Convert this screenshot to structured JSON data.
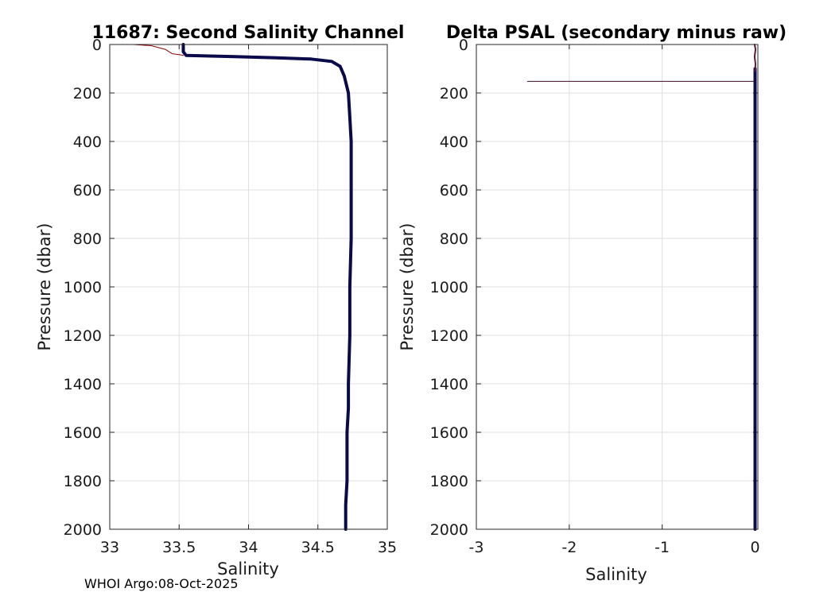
{
  "footer_text": "WHOI Argo:08-Oct-2025",
  "chart_data": [
    {
      "type": "line",
      "title": "11687: Second Salinity Channel",
      "xlabel": "Salinity",
      "ylabel": "Pressure (dbar)",
      "xlim": [
        33,
        35
      ],
      "ylim": [
        0,
        2000
      ],
      "y_reversed": true,
      "grid": true,
      "xticks": [
        33,
        33.5,
        34,
        34.5,
        35
      ],
      "xtick_labels": [
        "33",
        "33.5",
        "34",
        "34.5",
        "35"
      ],
      "yticks": [
        0,
        200,
        400,
        600,
        800,
        1000,
        1200,
        1400,
        1600,
        1800,
        2000
      ],
      "ytick_labels": [
        "0",
        "200",
        "400",
        "600",
        "800",
        "1000",
        "1200",
        "1400",
        "1600",
        "1800",
        "2000"
      ],
      "series": [
        {
          "color": "#0a0a4a",
          "x": [
            33.53,
            33.53,
            33.55,
            33.9,
            34.2,
            34.45,
            34.6,
            34.66,
            34.69,
            34.72,
            34.73,
            34.74,
            34.74,
            34.74,
            34.73,
            34.73,
            34.72,
            34.72,
            34.71,
            34.71,
            34.7,
            34.7
          ],
          "y": [
            0,
            30,
            45,
            50,
            55,
            60,
            70,
            90,
            130,
            200,
            300,
            400,
            600,
            800,
            1000,
            1200,
            1400,
            1500,
            1600,
            1800,
            1900,
            2000
          ]
        },
        {
          "color": "#8b0000",
          "x": [
            33.17,
            33.3,
            33.4,
            33.45,
            33.5,
            33.53
          ],
          "y": [
            0,
            5,
            20,
            38,
            42,
            45
          ]
        }
      ]
    },
    {
      "type": "line",
      "title": "Delta PSAL (secondary minus raw)",
      "xlabel": "Salinity",
      "ylabel": "Pressure (dbar)",
      "xlim": [
        -3,
        0.03
      ],
      "ylim": [
        0,
        2000
      ],
      "y_reversed": true,
      "grid": true,
      "xticks": [
        -3,
        -2,
        -1,
        0
      ],
      "xtick_labels": [
        "-3",
        "-2",
        "-1",
        "0"
      ],
      "yticks": [
        0,
        200,
        400,
        600,
        800,
        1000,
        1200,
        1400,
        1600,
        1800,
        2000
      ],
      "ytick_labels": [
        "0",
        "200",
        "400",
        "600",
        "800",
        "1000",
        "1200",
        "1400",
        "1600",
        "1800",
        "2000"
      ],
      "series": [
        {
          "color": "#0a0a4a",
          "x": [
            0,
            0,
            0,
            0,
            0,
            0
          ],
          "y": [
            100,
            400,
            800,
            1200,
            1600,
            2000
          ]
        },
        {
          "color": "#3a0a2a",
          "x": [
            -2.45,
            0
          ],
          "y": [
            152,
            152
          ]
        },
        {
          "color": "#5a1a3a",
          "x": [
            -0.005,
            0.005,
            -0.005,
            0.004,
            0
          ],
          "y": [
            0,
            20,
            50,
            80,
            110
          ]
        }
      ]
    }
  ]
}
